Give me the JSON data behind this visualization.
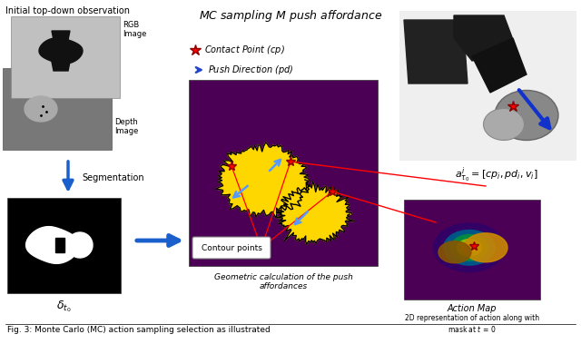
{
  "title": "MC sampling $M$ push affordance",
  "top_left_label": "Initial top-down observation",
  "seg_label": "Segmentation",
  "delta_label": "$\\delta_{t_0}$",
  "rgb_label": "RGB\nImage",
  "depth_label": "Depth\nImage",
  "legend_contact": "Contact Point ($cp$)",
  "legend_push": "Push Direction ($pd$)",
  "contour_label": "Contour points",
  "geo_caption": "Geometric calculation of the push\naffordances",
  "action_title": "Action Map",
  "action_caption": "2D representation of action along with\nmask at $t$ = 0",
  "formula": "$a^i_{\\tau_0} = [cp_i, pd_i, v_i]$",
  "fig_caption": "Fig. 3: Monte Carlo (MC) action sampling selection as illustrated",
  "bg_color": "#ffffff",
  "purple_bg": "#4B0055"
}
